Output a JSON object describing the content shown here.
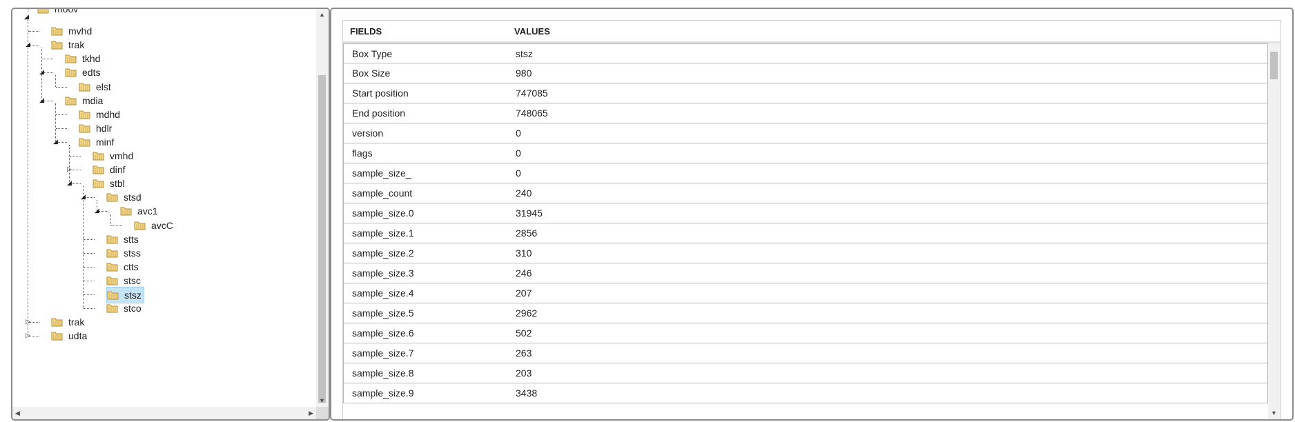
{
  "tree": {
    "nodes": [
      {
        "label": "moov"
      },
      {
        "label": "mvhd"
      },
      {
        "label": "trak"
      },
      {
        "label": "tkhd"
      },
      {
        "label": "edts"
      },
      {
        "label": "elst"
      },
      {
        "label": "mdia"
      },
      {
        "label": "mdhd"
      },
      {
        "label": "hdlr"
      },
      {
        "label": "minf"
      },
      {
        "label": "vmhd"
      },
      {
        "label": "dinf"
      },
      {
        "label": "stbl"
      },
      {
        "label": "stsd"
      },
      {
        "label": "avc1"
      },
      {
        "label": "avcC"
      },
      {
        "label": "stts"
      },
      {
        "label": "stss"
      },
      {
        "label": "ctts"
      },
      {
        "label": "stsc"
      },
      {
        "label": "stsz"
      },
      {
        "label": "stco"
      },
      {
        "label": "trak"
      },
      {
        "label": "udta"
      }
    ],
    "selected": "stsz",
    "icon": "folder-icon"
  },
  "table": {
    "header": {
      "fields": "FIELDS",
      "values": "VALUES"
    },
    "rows": [
      {
        "field": "Box Type",
        "value": "stsz"
      },
      {
        "field": "Box Size",
        "value": "980"
      },
      {
        "field": "Start position",
        "value": "747085"
      },
      {
        "field": "End position",
        "value": "748065"
      },
      {
        "field": "version",
        "value": "0"
      },
      {
        "field": "flags",
        "value": "0"
      },
      {
        "field": "sample_size_",
        "value": "0"
      },
      {
        "field": "sample_count",
        "value": "240"
      },
      {
        "field": "sample_size.0",
        "value": "31945"
      },
      {
        "field": "sample_size.1",
        "value": "2856"
      },
      {
        "field": "sample_size.2",
        "value": "310"
      },
      {
        "field": "sample_size.3",
        "value": "246"
      },
      {
        "field": "sample_size.4",
        "value": "207"
      },
      {
        "field": "sample_size.5",
        "value": "2962"
      },
      {
        "field": "sample_size.6",
        "value": "502"
      },
      {
        "field": "sample_size.7",
        "value": "263"
      },
      {
        "field": "sample_size.8",
        "value": "203"
      },
      {
        "field": "sample_size.9",
        "value": "3438"
      }
    ]
  },
  "colors": {
    "selected_bg": "#c4e3f6",
    "panel_border": "#8c8c8c",
    "folder": "#e8c26a"
  }
}
